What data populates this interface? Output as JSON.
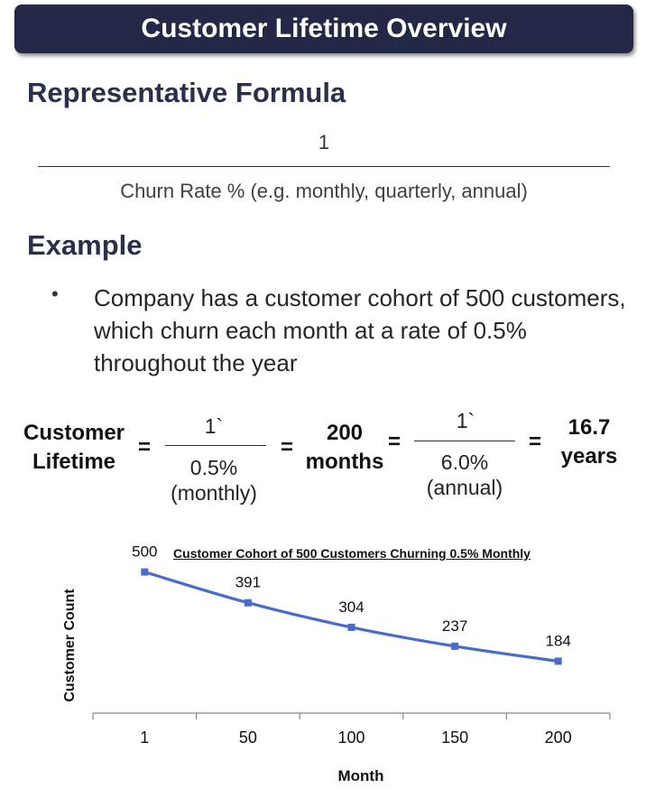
{
  "banner": {
    "title": "Customer Lifetime Overview"
  },
  "formula": {
    "heading": "Representative Formula",
    "numerator": "1",
    "denominator": "Churn Rate % (e.g. monthly, quarterly, annual)"
  },
  "example": {
    "heading": "Example",
    "bullet": "Company has a customer cohort of 500 customers, which churn each month at a rate of 0.5% throughout the year"
  },
  "equation": {
    "lhs_line1": "Customer",
    "lhs_line2": "Lifetime",
    "equals": "=",
    "frac1_num": "1`",
    "frac1_den_line1": "0.5%",
    "frac1_den_line2": "(monthly)",
    "mid_line1": "200",
    "mid_line2": "months",
    "frac2_num": "1`",
    "frac2_den_line1": "6.0%",
    "frac2_den_line2": "(annual)",
    "result_line1": "16.7",
    "result_line2": "years"
  },
  "chart_data": {
    "type": "line",
    "title": "Customer Cohort of 500 Customers Churning 0.5% Monthly",
    "xlabel": "Month",
    "ylabel": "Customer Count",
    "categories": [
      "1",
      "50",
      "100",
      "150",
      "200"
    ],
    "series": [
      {
        "values": [
          500,
          391,
          304,
          237,
          184
        ]
      }
    ],
    "ylim": [
      0,
      550
    ],
    "grid": false,
    "line_color": "#4a6cc9"
  }
}
